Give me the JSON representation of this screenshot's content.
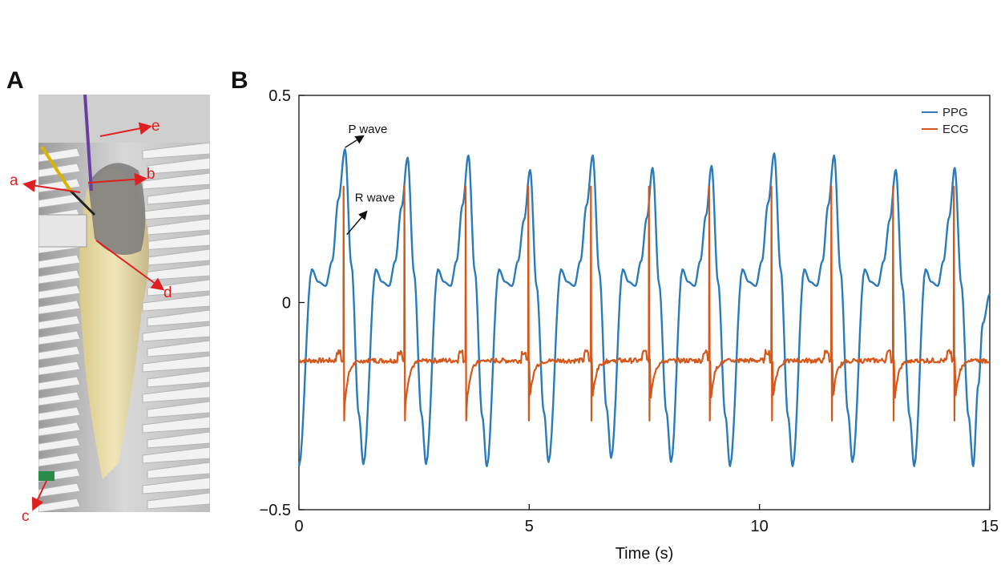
{
  "panels": {
    "a_letter": "A",
    "b_letter": "B"
  },
  "photo": {
    "labels": {
      "a": "a",
      "b": "b",
      "c": "c",
      "d": "d",
      "e": "e"
    }
  },
  "colors": {
    "ppg": "#2b7bba",
    "ecg": "#d4581c",
    "arrow_red": "#e02020",
    "axis": "#111111"
  },
  "chart_data": {
    "type": "line",
    "title": "",
    "xlabel": "Time (s)",
    "ylabel": "",
    "xlim": [
      0,
      15
    ],
    "ylim": [
      -0.5,
      0.5
    ],
    "xticks": [
      0,
      5,
      10,
      15
    ],
    "yticks": [
      -0.5,
      0,
      0.5
    ],
    "xtick_labels": [
      "0",
      "5",
      "10",
      "15"
    ],
    "ytick_labels": [
      "−0.5",
      "0",
      "0.5"
    ],
    "legend_position": "top-right",
    "series": [
      {
        "name": "PPG",
        "color": "#2b7bba",
        "beats": [
          {
            "start": 0.0,
            "peak_t": 1.0,
            "peak": 0.37,
            "trough_t": 1.4,
            "trough": -0.39
          },
          {
            "start": 1.4,
            "peak_t": 2.36,
            "peak": 0.35,
            "trough_t": 2.76,
            "trough": -0.39
          },
          {
            "start": 2.76,
            "peak_t": 3.68,
            "peak": 0.355,
            "trough_t": 4.08,
            "trough": -0.395
          },
          {
            "start": 4.08,
            "peak_t": 5.02,
            "peak": 0.32,
            "trough_t": 5.42,
            "trough": -0.385
          },
          {
            "start": 5.42,
            "peak_t": 6.38,
            "peak": 0.355,
            "trough_t": 6.78,
            "trough": -0.375
          },
          {
            "start": 6.78,
            "peak_t": 7.68,
            "peak": 0.325,
            "trough_t": 8.08,
            "trough": -0.385
          },
          {
            "start": 8.08,
            "peak_t": 8.96,
            "peak": 0.33,
            "trough_t": 9.36,
            "trough": -0.395
          },
          {
            "start": 9.36,
            "peak_t": 10.32,
            "peak": 0.36,
            "trough_t": 10.72,
            "trough": -0.395
          },
          {
            "start": 10.72,
            "peak_t": 11.62,
            "peak": 0.355,
            "trough_t": 12.02,
            "trough": -0.385
          },
          {
            "start": 12.02,
            "peak_t": 12.96,
            "peak": 0.32,
            "trough_t": 13.36,
            "trough": -0.395
          },
          {
            "start": 13.36,
            "peak_t": 14.24,
            "peak": 0.325,
            "trough_t": 14.64,
            "trough": -0.395
          }
        ],
        "shoulder": 0.07,
        "start_value": -0.395,
        "end_value": 0.02
      },
      {
        "name": "ECG",
        "color": "#d4581c",
        "baseline": -0.14,
        "r_peak": 0.28,
        "s_trough": -0.285,
        "r_times": [
          0.97,
          2.29,
          3.62,
          4.98,
          6.34,
          7.6,
          8.91,
          10.26,
          11.56,
          12.9,
          14.22
        ]
      }
    ],
    "annotations": [
      {
        "text": "P wave",
        "x": 1.0,
        "y": 0.37
      },
      {
        "text": "R wave",
        "x": 0.97,
        "y": 0.28
      }
    ]
  }
}
